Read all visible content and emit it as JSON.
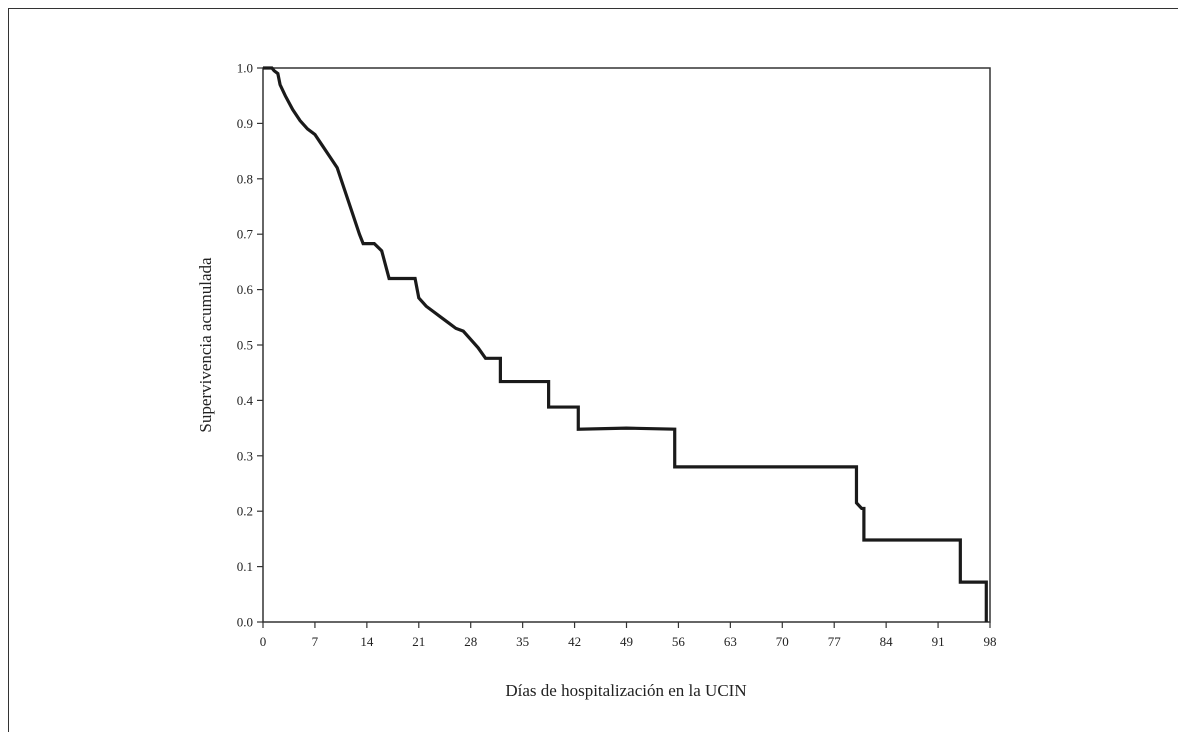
{
  "chart_data": {
    "type": "line",
    "step": true,
    "xlabel": "Días de hospitalización en la UCIN",
    "ylabel": "Supervivencia acumulada",
    "xlim": [
      0,
      98
    ],
    "ylim": [
      0.0,
      1.0
    ],
    "xticks": [
      0,
      7,
      14,
      21,
      28,
      35,
      42,
      49,
      56,
      63,
      70,
      77,
      84,
      91,
      98
    ],
    "xtick_labels": [
      "0",
      "7",
      "14",
      "21",
      "28",
      "35",
      "42",
      "49",
      "56",
      "63",
      "70",
      "77",
      "84",
      "91",
      "98"
    ],
    "yticks": [
      0.0,
      0.1,
      0.2,
      0.3,
      0.4,
      0.5,
      0.6,
      0.7,
      0.8,
      0.9,
      1.0
    ],
    "ytick_labels": [
      "0.0",
      "0.1",
      "0.2",
      "0.3",
      "0.4",
      "0.5",
      "0.6",
      "0.7",
      "0.8",
      "0.9",
      "1.0"
    ],
    "grid": false,
    "series": [
      {
        "color": "#1a1a1a",
        "points": [
          [
            0,
            1.0
          ],
          [
            1.2,
            1.0
          ],
          [
            1.5,
            0.995
          ],
          [
            2.0,
            0.99
          ],
          [
            2.3,
            0.97
          ],
          [
            3,
            0.95
          ],
          [
            4,
            0.925
          ],
          [
            5,
            0.905
          ],
          [
            6,
            0.89
          ],
          [
            7,
            0.88
          ],
          [
            8,
            0.86
          ],
          [
            9,
            0.84
          ],
          [
            10,
            0.82
          ],
          [
            11,
            0.78
          ],
          [
            12,
            0.74
          ],
          [
            13,
            0.7
          ],
          [
            13.5,
            0.683
          ],
          [
            15,
            0.683
          ],
          [
            16,
            0.67
          ],
          [
            17,
            0.62
          ],
          [
            20.5,
            0.62
          ],
          [
            21,
            0.585
          ],
          [
            22,
            0.57
          ],
          [
            23,
            0.56
          ],
          [
            24,
            0.55
          ],
          [
            25,
            0.54
          ],
          [
            26,
            0.53
          ],
          [
            27,
            0.525
          ],
          [
            28,
            0.51
          ],
          [
            29,
            0.495
          ],
          [
            30,
            0.476
          ],
          [
            32,
            0.476
          ],
          [
            32,
            0.434
          ],
          [
            38.5,
            0.434
          ],
          [
            38.5,
            0.388
          ],
          [
            42.5,
            0.388
          ],
          [
            42.5,
            0.348
          ],
          [
            49,
            0.35
          ],
          [
            55.5,
            0.348
          ],
          [
            55.5,
            0.28
          ],
          [
            80,
            0.28
          ],
          [
            80,
            0.215
          ],
          [
            80.7,
            0.205
          ],
          [
            81,
            0.205
          ],
          [
            81,
            0.148
          ],
          [
            94,
            0.148
          ],
          [
            94,
            0.072
          ],
          [
            97.5,
            0.072
          ],
          [
            97.5,
            0.0
          ]
        ]
      }
    ]
  }
}
